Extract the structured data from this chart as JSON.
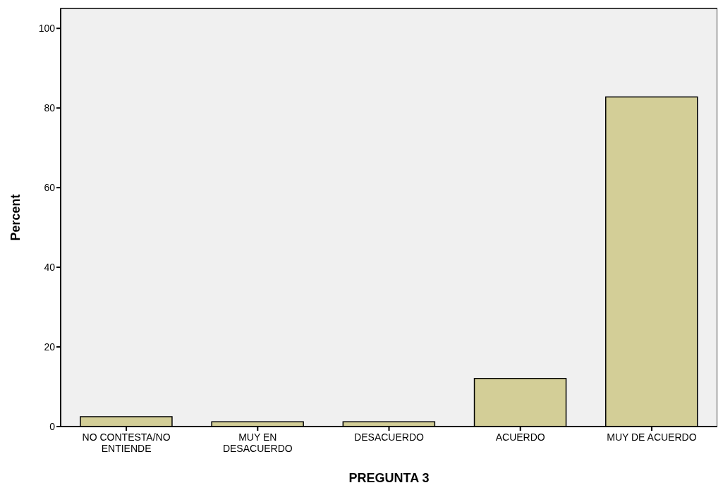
{
  "chart_data": {
    "type": "bar",
    "xlabel": "PREGUNTA 3",
    "ylabel": "Percent",
    "categories": [
      "NO CONTESTA/NO ENTIENDE",
      "MUY EN DESACUERDO",
      "DESACUERDO",
      "ACUERDO",
      "MUY DE ACUERDO"
    ],
    "values": [
      2.5,
      1.2,
      1.2,
      12.1,
      82.8
    ],
    "color": "#d3ce97",
    "ylim": [
      0,
      105
    ],
    "yticks": [
      0,
      20,
      40,
      60,
      80,
      100
    ],
    "grid": false,
    "legend": false
  }
}
